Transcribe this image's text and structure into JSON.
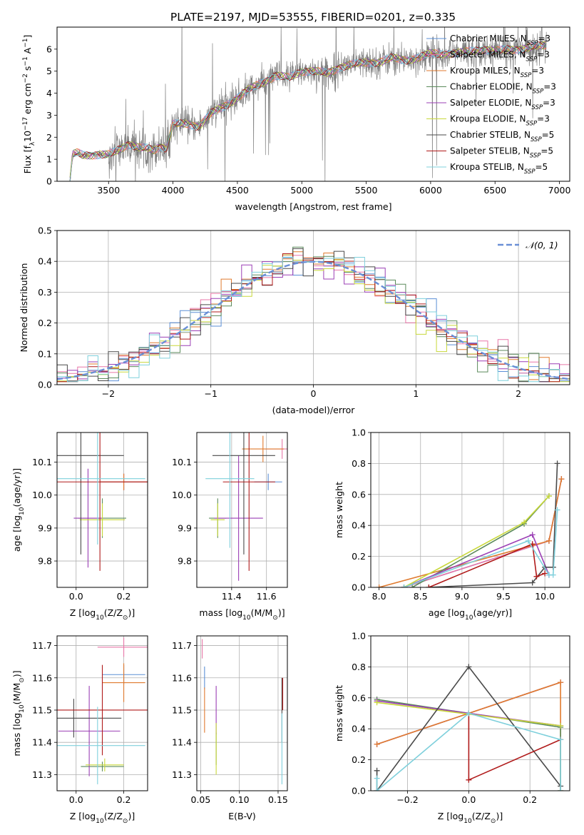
{
  "figure_title": "PLATE=2197, MJD=53555, FIBERID=0201, z=0.335",
  "series": [
    {
      "name": "Chabrier MILES, N$_{SSP}$=3",
      "label_main": "Chabrier MILES, N",
      "label_sub": "SSP",
      "label_tail": "=3",
      "color": "#5b8fd6"
    },
    {
      "name": "Salpeter MILES, N$_{SSP}$=3",
      "label_main": "Salpeter MILES, N",
      "label_sub": "SSP",
      "label_tail": "=3",
      "color": "#e877a8"
    },
    {
      "name": "Kroupa MILES, N$_{SSP}$=3",
      "label_main": "Kroupa MILES, N",
      "label_sub": "SSP",
      "label_tail": "=3",
      "color": "#e07a2e"
    },
    {
      "name": "Chabrier ELODIE, N$_{SSP}$=3",
      "label_main": "Chabrier ELODIE, N",
      "label_sub": "SSP",
      "label_tail": "=3",
      "color": "#5b8a5b"
    },
    {
      "name": "Salpeter ELODIE, N$_{SSP}$=3",
      "label_main": "Salpeter ELODIE, N",
      "label_sub": "SSP",
      "label_tail": "=3",
      "color": "#9b3fb5"
    },
    {
      "name": "Kroupa ELODIE, N$_{SSP}$=3",
      "label_main": "Kroupa ELODIE, N",
      "label_sub": "SSP",
      "label_tail": "=3",
      "color": "#c8d83a"
    },
    {
      "name": "Chabrier STELIB, N$_{SSP}$=5",
      "label_main": "Chabrier STELIB, N",
      "label_sub": "SSP",
      "label_tail": "=5",
      "color": "#4a4a4a"
    },
    {
      "name": "Salpeter STELIB, N$_{SSP}$=5",
      "label_main": "Salpeter STELIB, N",
      "label_sub": "SSP",
      "label_tail": "=5",
      "color": "#b01a1a"
    },
    {
      "name": "Kroupa STELIB, N$_{SSP}$=5",
      "label_main": "Kroupa STELIB, N",
      "label_sub": "SSP",
      "label_tail": "=5",
      "color": "#7fd0dc"
    }
  ],
  "chart_data": [
    {
      "id": "spectrum",
      "type": "line",
      "xlabel": "wavelength [Angstrom, rest frame]",
      "ylabel": "Flux [f$_\\lambda$10$^{-17}$ erg cm$^{-2}$ s$^{-1}$ A$^{-1}$]",
      "ylabel_parts": [
        "Flux [f",
        "λ",
        "10",
        "−17",
        " erg cm",
        "−2",
        " s",
        "−1",
        " A",
        "−1",
        "]"
      ],
      "xlim": [
        3100,
        7080
      ],
      "ylim": [
        0,
        7
      ],
      "xticks": [
        3500,
        4000,
        4500,
        5000,
        5500,
        6000,
        6500,
        7000
      ],
      "yticks": [
        0,
        1,
        2,
        3,
        4,
        5,
        6
      ],
      "data_color": "#808080",
      "model_continuum": {
        "x": [
          3200,
          3220,
          3260,
          3300,
          3400,
          3500,
          3600,
          3650,
          3700,
          3750,
          3800,
          3850,
          3900,
          3950,
          4000,
          4100,
          4200,
          4300,
          4400,
          4500,
          4600,
          4700,
          4800,
          4900,
          5000,
          5100,
          5200,
          5300,
          5400,
          5500,
          5600,
          5700,
          5800,
          5900,
          6000,
          6100,
          6200,
          6300,
          6400,
          6500,
          6600,
          6700,
          6800,
          6900
        ],
        "y": [
          0.0,
          1.2,
          1.3,
          1.2,
          1.2,
          1.2,
          1.5,
          1.7,
          1.6,
          1.5,
          1.5,
          1.4,
          1.6,
          1.5,
          2.6,
          2.6,
          2.5,
          3.1,
          3.4,
          3.8,
          4.2,
          4.5,
          4.8,
          4.7,
          5.0,
          5.0,
          4.9,
          5.2,
          5.3,
          5.4,
          5.4,
          5.6,
          5.5,
          5.6,
          5.8,
          5.8,
          5.8,
          5.9,
          6.0,
          5.9,
          6.0,
          6.0,
          6.1,
          6.2
        ]
      }
    },
    {
      "id": "residuals",
      "type": "histogram",
      "xlabel": "(data-model)/error",
      "ylabel": "Normed distribution",
      "xlim": [
        -2.5,
        2.5
      ],
      "ylim": [
        0,
        0.5
      ],
      "xticks": [
        -2,
        -1,
        0,
        1,
        2
      ],
      "yticks": [
        0.0,
        0.1,
        0.2,
        0.3,
        0.4,
        0.5
      ],
      "bin_width": 0.1,
      "legend": "$\\mathcal{N}(0,1)$",
      "legend_text": "𝒩(0, 1)",
      "reference_curve": {
        "name": "N(0,1)",
        "color": "#6a8fd6",
        "mu": 0,
        "sigma": 1
      }
    },
    {
      "id": "age_vs_Z",
      "type": "errorbar",
      "xlabel_parts": [
        "Z [log",
        "10",
        "(Z/Z",
        "⊙",
        ")]"
      ],
      "ylabel_parts": [
        "age  [log",
        "10",
        "(age/yr)]"
      ],
      "xlim": [
        -0.08,
        0.3
      ],
      "ylim": [
        9.72,
        10.19
      ],
      "xticks": [
        0.0,
        0.2
      ],
      "yticks": [
        9.8,
        9.9,
        10.0,
        10.1
      ],
      "points": [
        {
          "s": 0,
          "x": 0.2,
          "y": 10.04,
          "xerr": 0.1,
          "yerr": 0.025
        },
        {
          "s": 1,
          "x": 0.2,
          "y": 10.04,
          "xerr": 0.1,
          "yerr": 0.025
        },
        {
          "s": 2,
          "x": 0.2,
          "y": 10.04,
          "xerr": 0.1,
          "yerr": 0.025
        },
        {
          "s": 3,
          "x": 0.11,
          "y": 9.93,
          "xerr": 0.1,
          "yerr": 0.06
        },
        {
          "s": 4,
          "x": 0.05,
          "y": 9.93,
          "xerr": 0.06,
          "yerr": 0.15
        },
        {
          "s": 5,
          "x": 0.11,
          "y": 9.925,
          "xerr": 0.095,
          "yerr": 0.05
        },
        {
          "s": 6,
          "x": 0.02,
          "y": 10.12,
          "xerr": 0.18,
          "yerr": 0.3
        },
        {
          "s": 7,
          "x": 0.1,
          "y": 10.04,
          "xerr": 0.2,
          "yerr": 0.27
        },
        {
          "s": 8,
          "x": 0.09,
          "y": 10.05,
          "xerr": 0.2,
          "yerr": 0.2
        }
      ]
    },
    {
      "id": "age_vs_mass",
      "type": "errorbar",
      "xlabel_parts": [
        "mass [log",
        "10",
        "(M/M",
        "⊙",
        ")]"
      ],
      "ylabel_parts": [
        "",
        "",
        ""
      ],
      "xlim": [
        11.2,
        11.72
      ],
      "ylim": [
        9.72,
        10.19
      ],
      "xticks": [
        11.4,
        11.6
      ],
      "yticks": [
        9.8,
        9.9,
        10.0,
        10.1
      ],
      "points": [
        {
          "s": 0,
          "x": 11.61,
          "y": 10.04,
          "xerr": 0.08,
          "yerr": 0.025
        },
        {
          "s": 1,
          "x": 11.69,
          "y": 10.14,
          "xerr": 0.1,
          "yerr": 0.03
        },
        {
          "s": 2,
          "x": 11.58,
          "y": 10.14,
          "xerr": 0.12,
          "yerr": 0.04
        },
        {
          "s": 3,
          "x": 11.32,
          "y": 9.93,
          "xerr": 0.05,
          "yerr": 0.06
        },
        {
          "s": 4,
          "x": 11.44,
          "y": 9.93,
          "xerr": 0.14,
          "yerr": 0.19
        },
        {
          "s": 5,
          "x": 11.32,
          "y": 9.925,
          "xerr": 0.04,
          "yerr": 0.05
        },
        {
          "s": 6,
          "x": 11.47,
          "y": 10.12,
          "xerr": 0.18,
          "yerr": 0.3
        },
        {
          "s": 7,
          "x": 11.5,
          "y": 10.04,
          "xerr": 0.15,
          "yerr": 0.27
        },
        {
          "s": 8,
          "x": 11.39,
          "y": 10.05,
          "xerr": 0.14,
          "yerr": 0.21
        }
      ]
    },
    {
      "id": "massweight_vs_age",
      "type": "line",
      "xlabel_parts": [
        "age  [log",
        "10",
        "(age/yr)]"
      ],
      "ylabel": "mass weight",
      "xlim": [
        7.9,
        10.3
      ],
      "ylim": [
        0,
        1.0
      ],
      "xticks": [
        8.0,
        8.5,
        9.0,
        9.5,
        10.0
      ],
      "yticks": [
        0.0,
        0.2,
        0.4,
        0.6,
        0.8,
        1.0
      ],
      "lines": [
        {
          "s": 0,
          "x": [
            8.3,
            10.05,
            10.2
          ],
          "y": [
            0.0,
            0.3,
            0.7
          ]
        },
        {
          "s": 1,
          "x": [
            8.3,
            10.05,
            10.2
          ],
          "y": [
            0.0,
            0.3,
            0.7
          ]
        },
        {
          "s": 2,
          "x": [
            8.0,
            10.05,
            10.2
          ],
          "y": [
            0.0,
            0.3,
            0.7
          ]
        },
        {
          "s": 3,
          "x": [
            8.4,
            9.75,
            10.05
          ],
          "y": [
            0.0,
            0.41,
            0.59
          ]
        },
        {
          "s": 4,
          "x": [
            8.3,
            9.85,
            10.05
          ],
          "y": [
            0.0,
            0.34,
            0.08
          ]
        },
        {
          "s": 5,
          "x": [
            8.3,
            9.75,
            10.05
          ],
          "y": [
            0.0,
            0.42,
            0.59
          ]
        },
        {
          "s": 6,
          "x": [
            8.6,
            9.85,
            10.0,
            10.1,
            10.15
          ],
          "y": [
            0.0,
            0.03,
            0.13,
            0.13,
            0.8
          ]
        },
        {
          "s": 7,
          "x": [
            8.6,
            9.85,
            9.9,
            10.0
          ],
          "y": [
            0.0,
            0.28,
            0.07,
            0.09
          ]
        },
        {
          "s": 8,
          "x": [
            8.3,
            9.8,
            10.05,
            10.1,
            10.15
          ],
          "y": [
            0.0,
            0.3,
            0.08,
            0.08,
            0.5
          ]
        }
      ]
    },
    {
      "id": "mass_vs_Z",
      "type": "errorbar",
      "xlabel_parts": [
        "Z [log",
        "10",
        "(Z/Z",
        "⊙",
        ")]"
      ],
      "ylabel_parts": [
        "mass [log",
        "10",
        "(M/M",
        "⊙",
        ")]"
      ],
      "xlim": [
        -0.08,
        0.3
      ],
      "ylim": [
        11.25,
        11.73
      ],
      "xticks": [
        0.0,
        0.2
      ],
      "yticks": [
        11.3,
        11.4,
        11.5,
        11.6,
        11.7
      ],
      "points": [
        {
          "s": 0,
          "x": 0.2,
          "y": 11.61,
          "xerr": 0.09,
          "yerr": 0.03
        },
        {
          "s": 1,
          "x": 0.2,
          "y": 11.695,
          "xerr": 0.11,
          "yerr": 0.03
        },
        {
          "s": 2,
          "x": 0.2,
          "y": 11.585,
          "xerr": 0.09,
          "yerr": 0.06
        },
        {
          "s": 3,
          "x": 0.11,
          "y": 11.325,
          "xerr": 0.09,
          "yerr": 0.015
        },
        {
          "s": 4,
          "x": 0.055,
          "y": 11.435,
          "xerr": 0.13,
          "yerr": 0.14
        },
        {
          "s": 5,
          "x": 0.12,
          "y": 11.33,
          "xerr": 0.08,
          "yerr": 0.02
        },
        {
          "s": 6,
          "x": -0.01,
          "y": 11.475,
          "xerr": 0.2,
          "yerr": 0.06
        },
        {
          "s": 7,
          "x": 0.11,
          "y": 11.5,
          "xerr": 0.2,
          "yerr": 0.14
        },
        {
          "s": 8,
          "x": 0.09,
          "y": 11.39,
          "xerr": 0.2,
          "yerr": 0.12
        }
      ]
    },
    {
      "id": "mass_vs_ebv",
      "type": "errorbar",
      "xlabel": "E(B-V)",
      "ylabel_parts": [
        "",
        "",
        ""
      ],
      "xlim": [
        0.045,
        0.162
      ],
      "ylim": [
        11.25,
        11.73
      ],
      "xticks": [
        0.05,
        0.1,
        0.15
      ],
      "yticks": [
        11.3,
        11.4,
        11.5,
        11.6,
        11.7
      ],
      "points": [
        {
          "s": 0,
          "x": 0.055,
          "y": 11.6,
          "xerr": 0,
          "yerr": 0.035
        },
        {
          "s": 1,
          "x": 0.052,
          "y": 11.69,
          "xerr": 0,
          "yerr": 0.03
        },
        {
          "s": 2,
          "x": 0.055,
          "y": 11.5,
          "xerr": 0,
          "yerr": 0.07
        },
        {
          "s": 3,
          "x": 0.07,
          "y": 11.38,
          "xerr": 0,
          "yerr": 0.05
        },
        {
          "s": 4,
          "x": 0.07,
          "y": 11.5,
          "xerr": 0,
          "yerr": 0.075
        },
        {
          "s": 5,
          "x": 0.07,
          "y": 11.38,
          "xerr": 0,
          "yerr": 0.08
        },
        {
          "s": 6,
          "x": 0.155,
          "y": 11.5,
          "xerr": 0,
          "yerr": 0.1
        },
        {
          "s": 7,
          "x": 0.156,
          "y": 11.55,
          "xerr": 0,
          "yerr": 0.05
        },
        {
          "s": 8,
          "x": 0.155,
          "y": 11.38,
          "xerr": 0,
          "yerr": 0.11
        }
      ]
    },
    {
      "id": "massweight_vs_Z",
      "type": "line",
      "xlabel_parts": [
        "Z [log",
        "10",
        "(Z/Z",
        "⊙",
        ")]"
      ],
      "ylabel": "mass weight",
      "xlim": [
        -0.32,
        0.33
      ],
      "ylim": [
        0,
        1.0
      ],
      "xticks": [
        -0.2,
        0.0,
        0.2
      ],
      "yticks": [
        0.0,
        0.2,
        0.4,
        0.6,
        0.8,
        1.0
      ],
      "lines": [
        {
          "s": 0,
          "x": [
            -0.3,
            0.0,
            0.3
          ],
          "y": [
            0.3,
            0.5,
            0.7
          ]
        },
        {
          "s": 1,
          "x": [
            -0.3,
            0.0,
            0.3
          ],
          "y": [
            0.3,
            0.5,
            0.7
          ]
        },
        {
          "s": 2,
          "x": [
            -0.3,
            0.0,
            0.3,
            0.3
          ],
          "y": [
            0.3,
            0.5,
            0.7,
            0.0
          ]
        },
        {
          "s": 3,
          "x": [
            -0.3,
            0.3,
            0.3
          ],
          "y": [
            0.59,
            0.41,
            0.0
          ]
        },
        {
          "s": 4,
          "x": [
            -0.3,
            0.3
          ],
          "y": [
            0.58,
            0.42
          ]
        },
        {
          "s": 5,
          "x": [
            -0.3,
            0.3
          ],
          "y": [
            0.57,
            0.42
          ]
        },
        {
          "s": 6,
          "x": [
            -0.3,
            -0.3,
            0.0,
            0.3
          ],
          "y": [
            0.13,
            0.0,
            0.8,
            0.03
          ]
        },
        {
          "s": 7,
          "x": [
            0.0,
            0.0,
            0.3
          ],
          "y": [
            0.5,
            0.07,
            0.33
          ]
        },
        {
          "s": 8,
          "x": [
            -0.3,
            -0.3,
            0.0,
            0.3,
            0.3
          ],
          "y": [
            0.08,
            0.0,
            0.5,
            0.33,
            0.0
          ]
        }
      ]
    }
  ]
}
